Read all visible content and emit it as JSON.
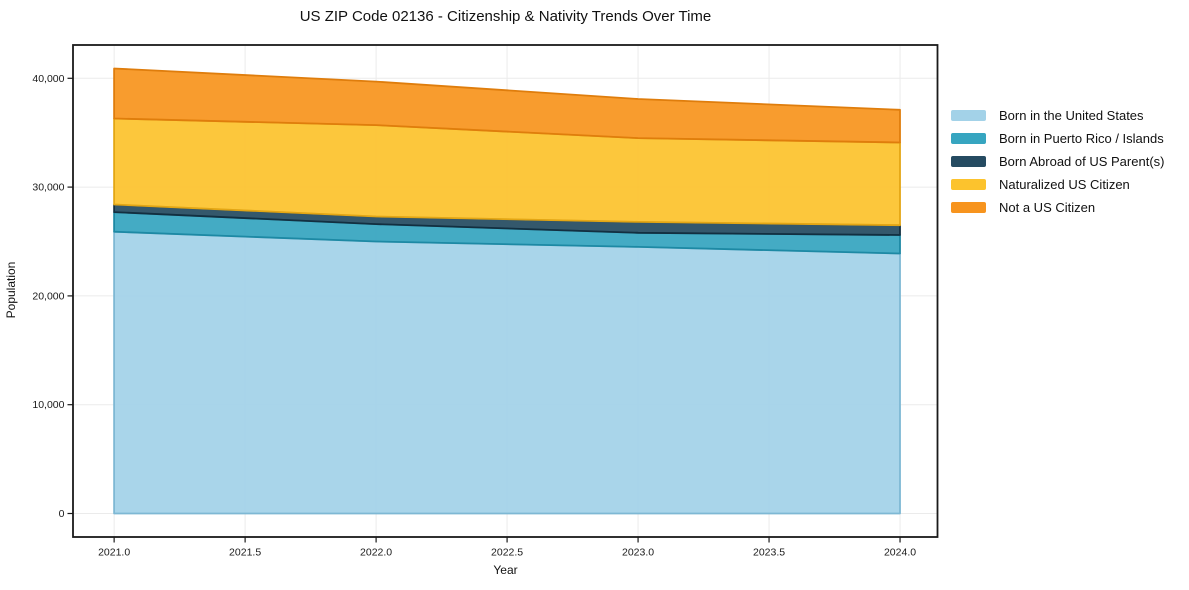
{
  "figure": {
    "title": "US ZIP Code 02136 - Citizenship & Nativity Trends Over Time"
  },
  "chart_data": {
    "type": "area",
    "stacked": true,
    "title": "US ZIP Code 02136 - Citizenship & Nativity Trends Over Time",
    "xlabel": "Year",
    "ylabel": "Population",
    "x": [
      2021,
      2022,
      2023,
      2024
    ],
    "series": [
      {
        "name": "Born in the United States",
        "color": "#a3d2e8",
        "edge": "#7eb8d4",
        "values": [
          25900,
          25000,
          24500,
          23900
        ]
      },
      {
        "name": "Born in Puerto Rico / Islands",
        "color": "#36a5c0",
        "edge": "#1d89a4",
        "values": [
          1800,
          1600,
          1300,
          1700
        ]
      },
      {
        "name": "Born Abroad of US Parent(s)",
        "color": "#254b61",
        "edge": "#132f40",
        "values": [
          700,
          700,
          1000,
          900
        ]
      },
      {
        "name": "Naturalized US Citizen",
        "color": "#fcc32d",
        "edge": "#e3a614",
        "values": [
          7900,
          8400,
          7700,
          7600
        ]
      },
      {
        "name": "Not a US Citizen",
        "color": "#f7941e",
        "edge": "#df7d0c",
        "values": [
          4600,
          4000,
          3600,
          3000
        ]
      }
    ],
    "stacked_totals": [
      40900,
      39700,
      38100,
      37100
    ],
    "xlim": [
      2020.843,
      2024.143
    ],
    "ylim": [
      -2160,
      43060
    ],
    "xticks": [
      "2021.0",
      "2021.5",
      "2022.0",
      "2022.5",
      "2023.0",
      "2023.5",
      "2024.0"
    ],
    "xtick_values": [
      2021,
      2021.5,
      2022,
      2022.5,
      2023,
      2023.5,
      2024
    ],
    "yticks": [
      "0",
      "10,000",
      "20,000",
      "30,000",
      "40,000"
    ],
    "ytick_values": [
      0,
      10000,
      20000,
      30000,
      40000
    ],
    "grid": true,
    "legend_position": "center right outside"
  }
}
